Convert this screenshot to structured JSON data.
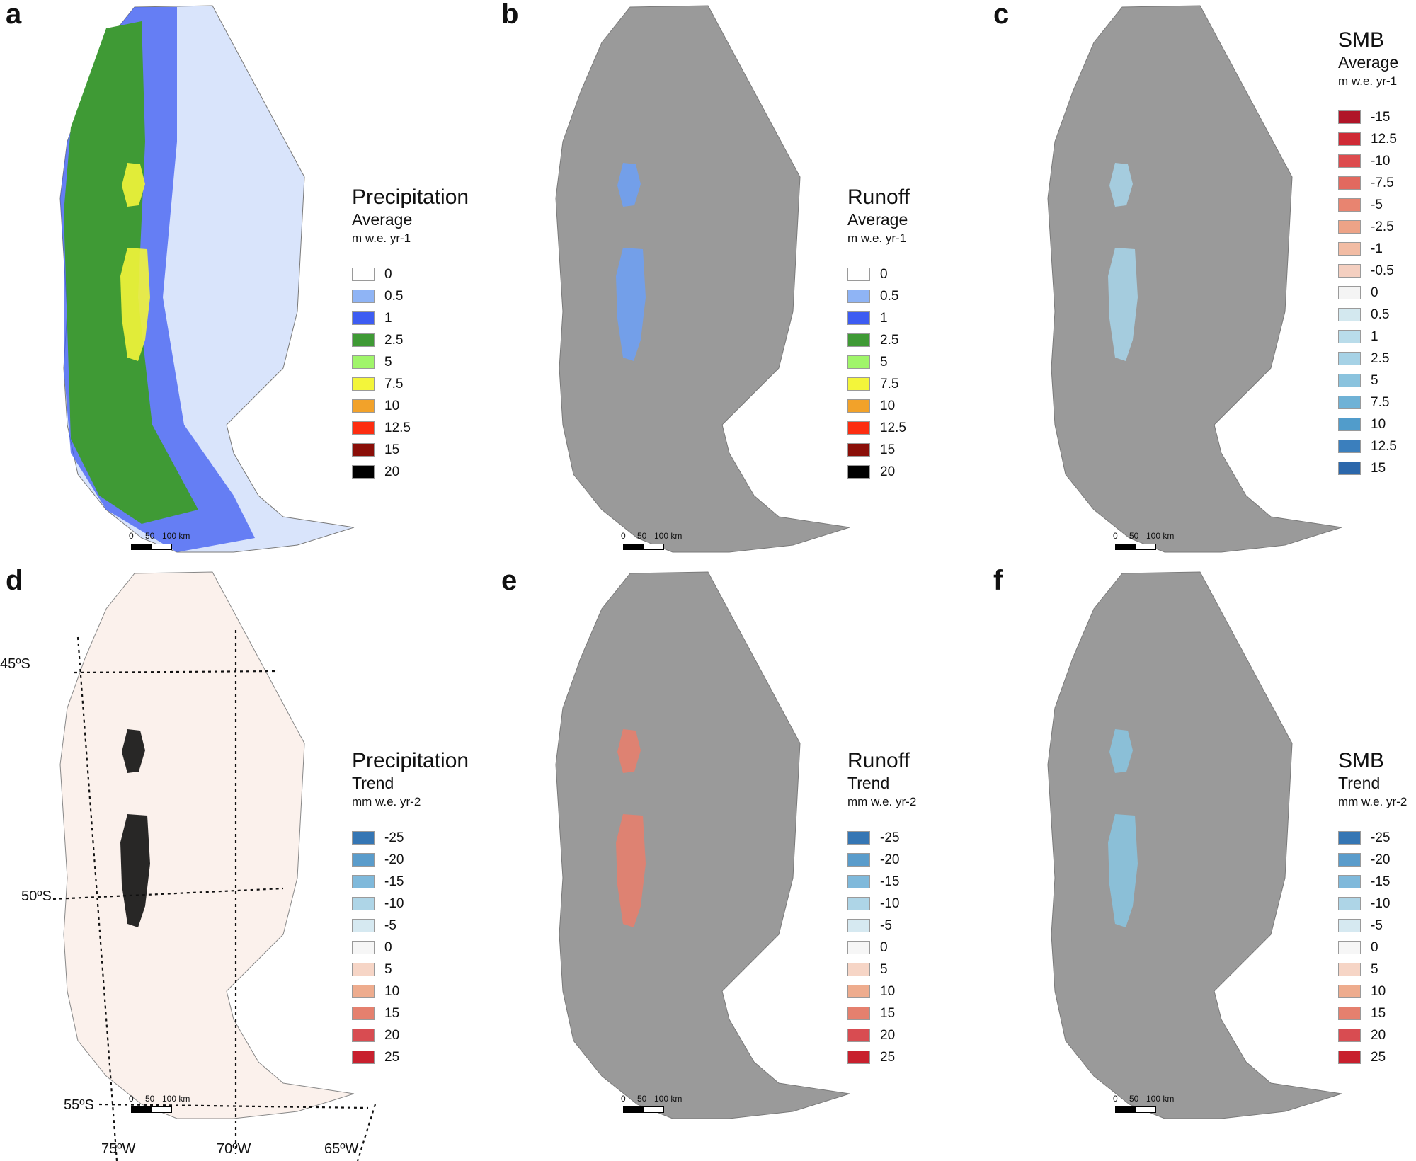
{
  "panels": [
    {
      "letter": "a",
      "title": "Precipitation",
      "subtitle": "Average",
      "unit": "m w.e. yr-1",
      "legend": [
        {
          "label": "0",
          "color": "#ffffff"
        },
        {
          "label": "0.5",
          "color": "#8fb4f5"
        },
        {
          "label": "1",
          "color": "#3d5cf2"
        },
        {
          "label": "2.5",
          "color": "#3f9a35"
        },
        {
          "label": "5",
          "color": "#a0f56a"
        },
        {
          "label": "7.5",
          "color": "#f3f53a"
        },
        {
          "label": "10",
          "color": "#f2a22a"
        },
        {
          "label": "12.5",
          "color": "#fd2d10"
        },
        {
          "label": "15",
          "color": "#8a0e08"
        },
        {
          "label": "20",
          "color": "#000000"
        }
      ]
    },
    {
      "letter": "b",
      "title": "Runoff",
      "subtitle": "Average",
      "unit": "m w.e. yr-1",
      "legend": [
        {
          "label": "0",
          "color": "#ffffff"
        },
        {
          "label": "0.5",
          "color": "#8fb4f5"
        },
        {
          "label": "1",
          "color": "#3d5cf2"
        },
        {
          "label": "2.5",
          "color": "#3f9a35"
        },
        {
          "label": "5",
          "color": "#a0f56a"
        },
        {
          "label": "7.5",
          "color": "#f3f53a"
        },
        {
          "label": "10",
          "color": "#f2a22a"
        },
        {
          "label": "12.5",
          "color": "#fd2d10"
        },
        {
          "label": "15",
          "color": "#8a0e08"
        },
        {
          "label": "20",
          "color": "#000000"
        }
      ]
    },
    {
      "letter": "c",
      "title": "SMB",
      "subtitle": "Average",
      "unit": "m w.e. yr-1",
      "legend": [
        {
          "label": "-15",
          "color": "#b01528"
        },
        {
          "label": "12.5",
          "color": "#cf2a35"
        },
        {
          "label": "-10",
          "color": "#dd4b4e"
        },
        {
          "label": "-7.5",
          "color": "#e2695f"
        },
        {
          "label": "-5",
          "color": "#e88470"
        },
        {
          "label": "-2.5",
          "color": "#eda387"
        },
        {
          "label": "-1",
          "color": "#f2bca4"
        },
        {
          "label": "-0.5",
          "color": "#f4cfc0"
        },
        {
          "label": "0",
          "color": "#f4f4f4"
        },
        {
          "label": "0.5",
          "color": "#d3e8ef"
        },
        {
          "label": "1",
          "color": "#b9dcea"
        },
        {
          "label": "2.5",
          "color": "#a6d2e6"
        },
        {
          "label": "5",
          "color": "#8ac3de"
        },
        {
          "label": "7.5",
          "color": "#6fb2d6"
        },
        {
          "label": "10",
          "color": "#519ccb"
        },
        {
          "label": "12.5",
          "color": "#3b7fbd"
        },
        {
          "label": "15",
          "color": "#2b67ab"
        }
      ]
    },
    {
      "letter": "d",
      "title": "Precipitation",
      "subtitle": "Trend",
      "unit": "mm w.e. yr-2",
      "legend": [
        {
          "label": "-25",
          "color": "#3576b4"
        },
        {
          "label": "-20",
          "color": "#5a9ccb"
        },
        {
          "label": "-15",
          "color": "#7fb9db"
        },
        {
          "label": "-10",
          "color": "#aed5e7"
        },
        {
          "label": "-5",
          "color": "#d6e9f1"
        },
        {
          "label": "0",
          "color": "#f6f6f6"
        },
        {
          "label": "5",
          "color": "#f6d5c6"
        },
        {
          "label": "10",
          "color": "#eeac8e"
        },
        {
          "label": "15",
          "color": "#e5806e"
        },
        {
          "label": "20",
          "color": "#d84c51"
        },
        {
          "label": "25",
          "color": "#c8202e"
        }
      ],
      "coords": {
        "lat": [
          "45ºS",
          "50ºS",
          "55ºS"
        ],
        "lon": [
          "75ºW",
          "70ºW",
          "65ºW"
        ]
      }
    },
    {
      "letter": "e",
      "title": "Runoff",
      "subtitle": "Trend",
      "unit": "mm w.e. yr-2",
      "legend": [
        {
          "label": "-25",
          "color": "#3576b4"
        },
        {
          "label": "-20",
          "color": "#5a9ccb"
        },
        {
          "label": "-15",
          "color": "#7fb9db"
        },
        {
          "label": "-10",
          "color": "#aed5e7"
        },
        {
          "label": "-5",
          "color": "#d6e9f1"
        },
        {
          "label": "0",
          "color": "#f6f6f6"
        },
        {
          "label": "5",
          "color": "#f6d5c6"
        },
        {
          "label": "10",
          "color": "#eeac8e"
        },
        {
          "label": "15",
          "color": "#e5806e"
        },
        {
          "label": "20",
          "color": "#d84c51"
        },
        {
          "label": "25",
          "color": "#c8202e"
        }
      ]
    },
    {
      "letter": "f",
      "title": "SMB",
      "subtitle": "Trend",
      "unit": "mm w.e. yr-2",
      "legend": [
        {
          "label": "-25",
          "color": "#3576b4"
        },
        {
          "label": "-20",
          "color": "#5a9ccb"
        },
        {
          "label": "-15",
          "color": "#7fb9db"
        },
        {
          "label": "-10",
          "color": "#aed5e7"
        },
        {
          "label": "-5",
          "color": "#d6e9f1"
        },
        {
          "label": "0",
          "color": "#f6f6f6"
        },
        {
          "label": "5",
          "color": "#f6d5c6"
        },
        {
          "label": "10",
          "color": "#eeac8e"
        },
        {
          "label": "15",
          "color": "#e5806e"
        },
        {
          "label": "20",
          "color": "#d84c51"
        },
        {
          "label": "25",
          "color": "#c8202e"
        }
      ]
    }
  ],
  "scalebar": {
    "labels": [
      "0",
      "50",
      "100 km"
    ]
  }
}
